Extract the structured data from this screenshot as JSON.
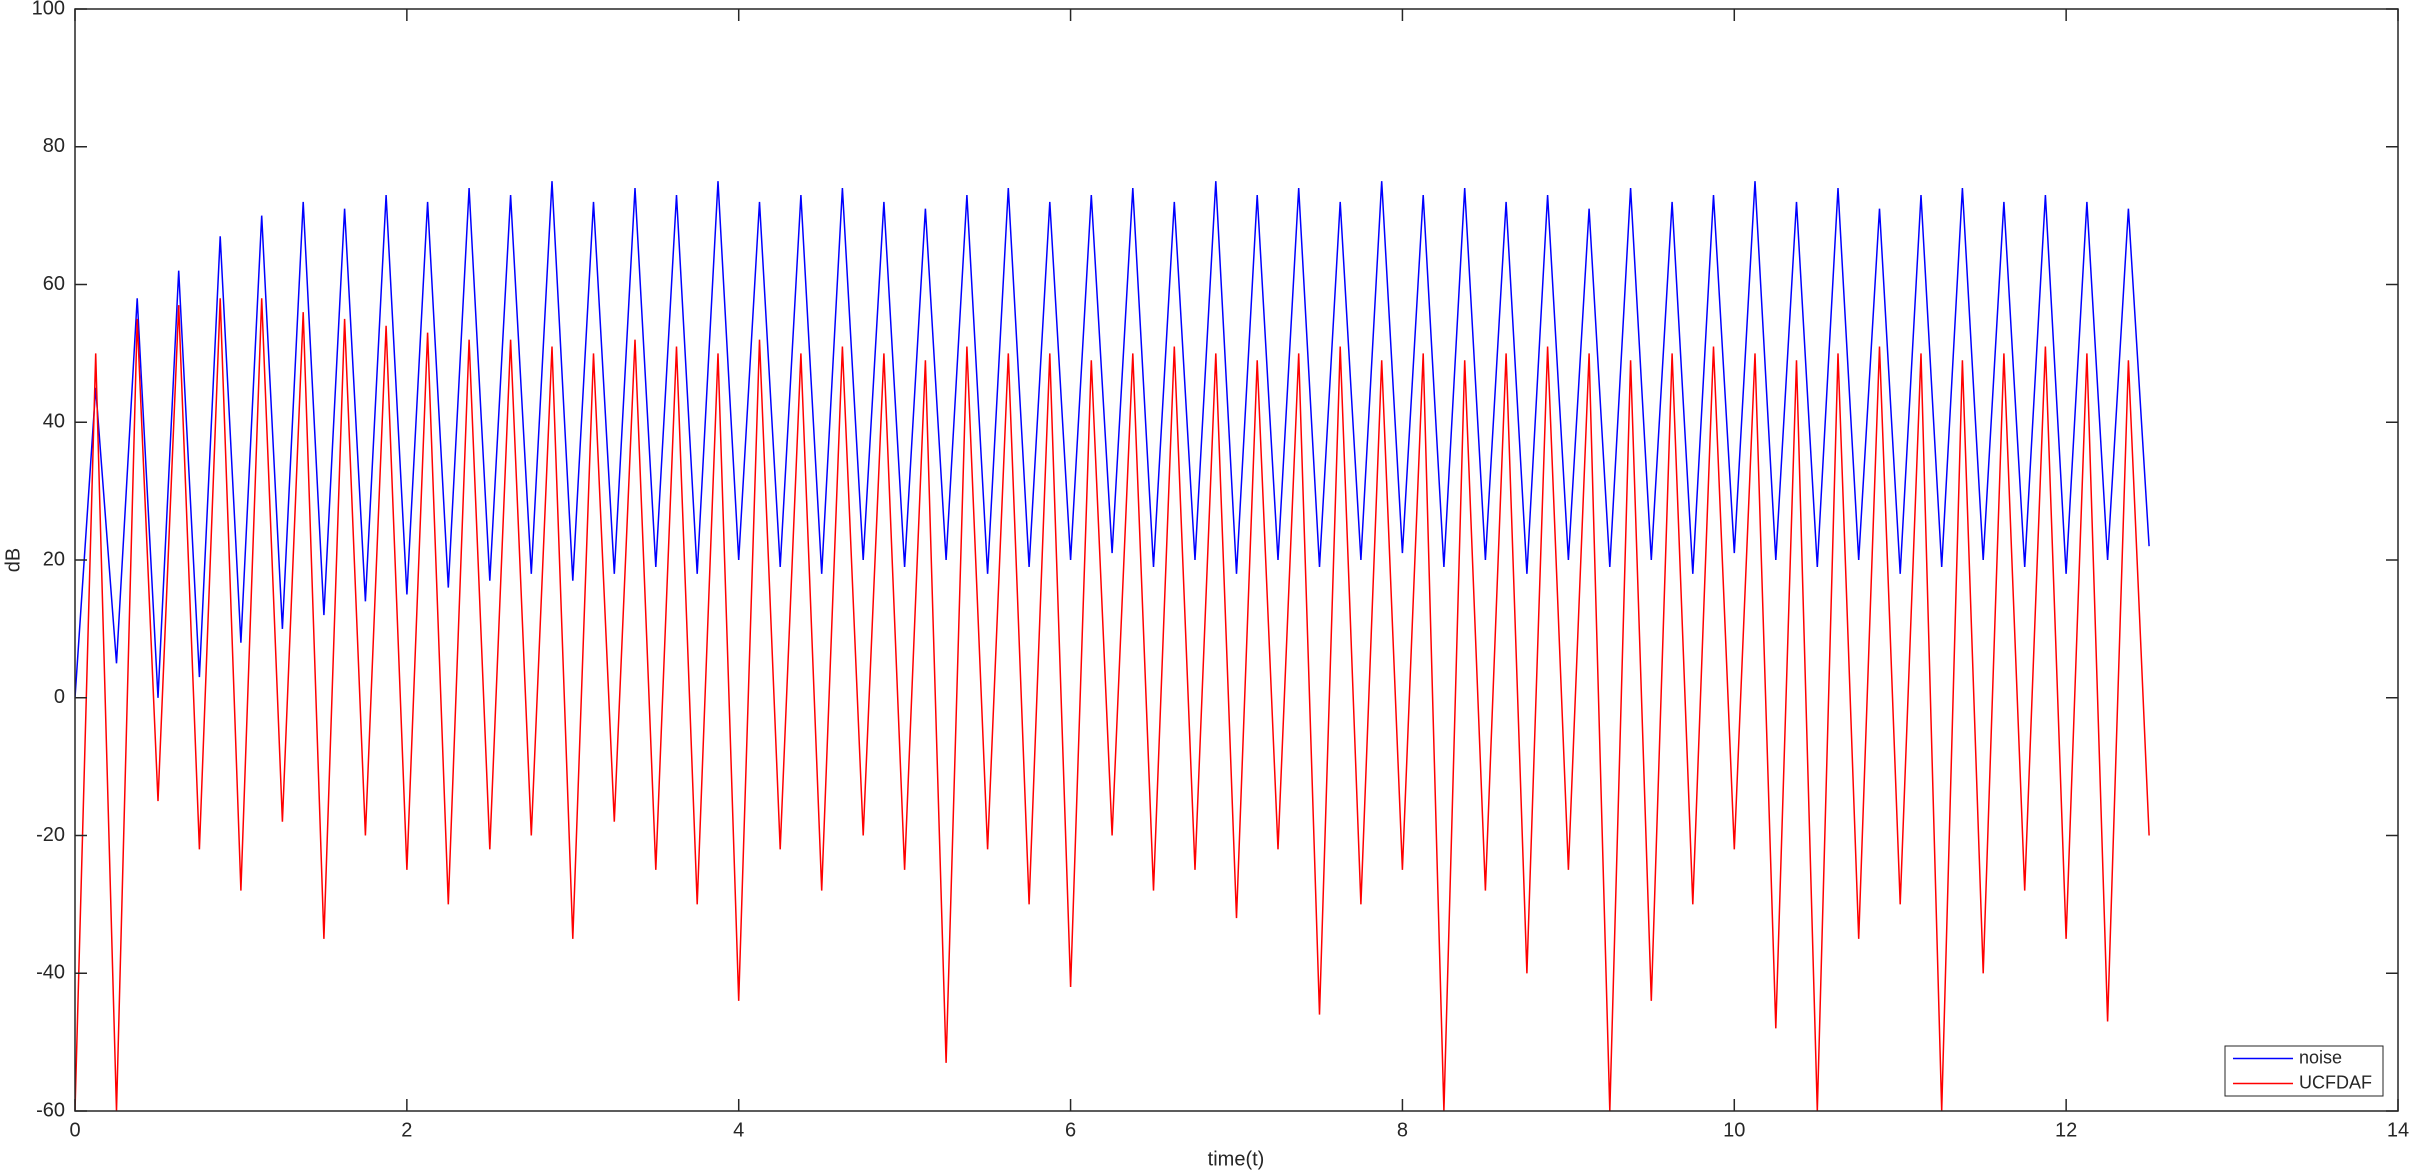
{
  "chart_data": {
    "type": "line",
    "xlabel": "time(t)",
    "ylabel": "dB",
    "x": [
      0,
      0.125,
      0.25,
      0.375,
      0.5,
      0.625,
      0.75,
      0.875,
      1,
      1.125,
      1.25,
      1.375,
      1.5,
      1.625,
      1.75,
      1.875,
      2,
      2.125,
      2.25,
      2.375,
      2.5,
      2.625,
      2.75,
      2.875,
      3,
      3.125,
      3.25,
      3.375,
      3.5,
      3.625,
      3.75,
      3.875,
      4,
      4.125,
      4.25,
      4.375,
      4.5,
      4.625,
      4.75,
      4.875,
      5,
      5.125,
      5.25,
      5.375,
      5.5,
      5.625,
      5.75,
      5.875,
      6,
      6.125,
      6.25,
      6.375,
      6.5,
      6.625,
      6.75,
      6.875,
      7,
      7.125,
      7.25,
      7.375,
      7.5,
      7.625,
      7.75,
      7.875,
      8,
      8.125,
      8.25,
      8.375,
      8.5,
      8.625,
      8.75,
      8.875,
      9,
      9.125,
      9.25,
      9.375,
      9.5,
      9.625,
      9.75,
      9.875,
      10,
      10.125,
      10.25,
      10.375,
      10.5,
      10.625,
      10.75,
      10.875,
      11,
      11.125,
      11.25,
      11.375,
      11.5,
      11.625,
      11.75,
      11.875,
      12,
      12.125,
      12.25,
      12.375,
      12.5
    ],
    "series": [
      {
        "name": "noise",
        "color": "#0000ff",
        "values": [
          0,
          45,
          5,
          58,
          0,
          62,
          3,
          67,
          8,
          70,
          10,
          72,
          12,
          71,
          14,
          73,
          15,
          72,
          16,
          74,
          17,
          73,
          18,
          75,
          17,
          72,
          18,
          74,
          19,
          73,
          18,
          75,
          20,
          72,
          19,
          73,
          18,
          74,
          20,
          72,
          19,
          71,
          20,
          73,
          18,
          74,
          19,
          72,
          20,
          73,
          21,
          74,
          19,
          72,
          20,
          75,
          18,
          73,
          20,
          74,
          19,
          72,
          20,
          75,
          21,
          73,
          19,
          74,
          20,
          72,
          18,
          73,
          20,
          71,
          19,
          74,
          20,
          72,
          18,
          73,
          21,
          75,
          20,
          72,
          19,
          74,
          20,
          71,
          18,
          73,
          19,
          74,
          20,
          72,
          19,
          73,
          18,
          72,
          20,
          71,
          22
        ]
      },
      {
        "name": "UCFDAF",
        "color": "#ff0000",
        "values": [
          -60,
          50,
          -60,
          55,
          -15,
          57,
          -22,
          58,
          -28,
          58,
          -18,
          56,
          -35,
          55,
          -20,
          54,
          -25,
          53,
          -30,
          52,
          -22,
          52,
          -20,
          51,
          -35,
          50,
          -18,
          52,
          -25,
          51,
          -30,
          50,
          -44,
          52,
          -22,
          50,
          -28,
          51,
          -20,
          50,
          -25,
          49,
          -53,
          51,
          -22,
          50,
          -30,
          50,
          -42,
          49,
          -20,
          50,
          -28,
          51,
          -25,
          50,
          -32,
          49,
          -22,
          50,
          -46,
          51,
          -30,
          49,
          -25,
          50,
          -60,
          49,
          -28,
          50,
          -40,
          51,
          -25,
          50,
          -60,
          49,
          -44,
          50,
          -30,
          51,
          -22,
          50,
          -48,
          49,
          -60,
          50,
          -35,
          51,
          -30,
          50,
          -60,
          49,
          -40,
          50,
          -28,
          51,
          -35,
          50,
          -47,
          49,
          -20
        ]
      }
    ],
    "xlim": [
      0,
      14
    ],
    "xticks": [
      0,
      2,
      4,
      6,
      8,
      10,
      12,
      14
    ],
    "ylim": [
      -60,
      100
    ],
    "yticks": [
      -60,
      -40,
      -20,
      0,
      20,
      40,
      60,
      80,
      100
    ],
    "legend": "lower right"
  }
}
